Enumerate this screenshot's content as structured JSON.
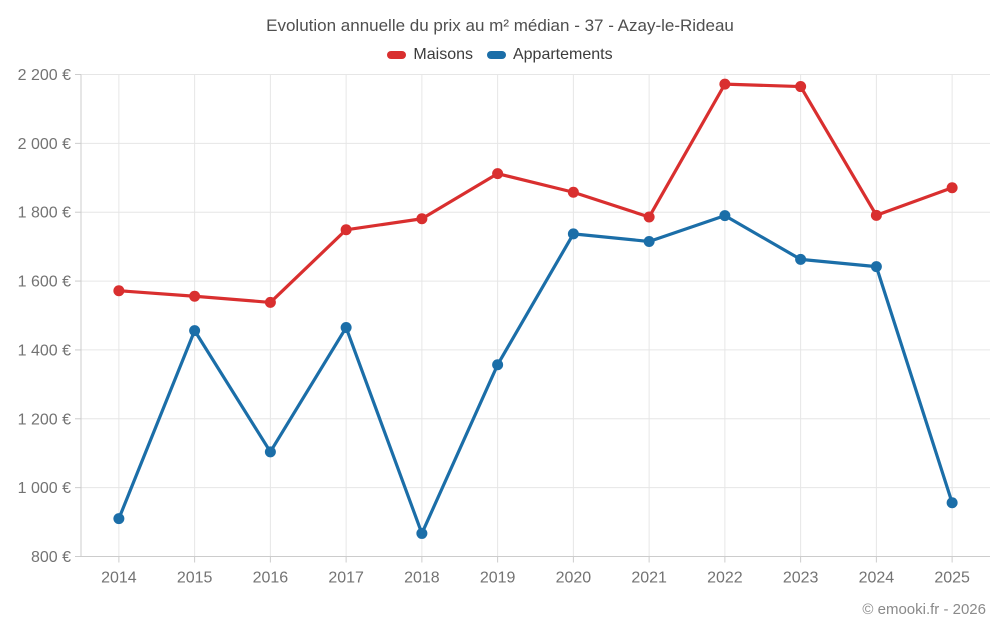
{
  "title": "Evolution annuelle du prix au m² médian - 37 - Azay-le-Rideau",
  "footer": "© emooki.fr - 2026",
  "legend": {
    "items": [
      {
        "label": "Maisons",
        "color": "#d92f2f"
      },
      {
        "label": "Appartements",
        "color": "#1b6ea8"
      }
    ]
  },
  "chart_data": {
    "type": "line",
    "title": "Evolution annuelle du prix au m² médian - 37 - Azay-le-Rideau",
    "categories": [
      "2014",
      "2015",
      "2016",
      "2017",
      "2018",
      "2019",
      "2020",
      "2021",
      "2022",
      "2023",
      "2024",
      "2025"
    ],
    "series": [
      {
        "name": "Maisons",
        "color": "#d92f2f",
        "values": [
          1572,
          1556,
          1538,
          1749,
          1781,
          1912,
          1858,
          1786,
          2172,
          2165,
          1791,
          1871
        ]
      },
      {
        "name": "Appartements",
        "color": "#1b6ea8",
        "values": [
          910,
          1456,
          1104,
          1465,
          867,
          1357,
          1737,
          1715,
          1790,
          1663,
          1642,
          956
        ]
      }
    ],
    "xlabel": "",
    "ylabel": "",
    "ylim": [
      800,
      2200
    ],
    "ytick_step": 200,
    "ytick_suffix": " €",
    "grid": true,
    "legend_position": "top",
    "marker": "circle",
    "credit": "© emooki.fr - 2026"
  },
  "colors": {
    "grid_line": "#e6e6e6",
    "axis_line": "#cccccc",
    "axis_label": "#737373",
    "title_text": "#4f4f4f",
    "legend_text": "#3c3c3c",
    "footer_text": "#8a8a8a",
    "background": "#ffffff"
  }
}
